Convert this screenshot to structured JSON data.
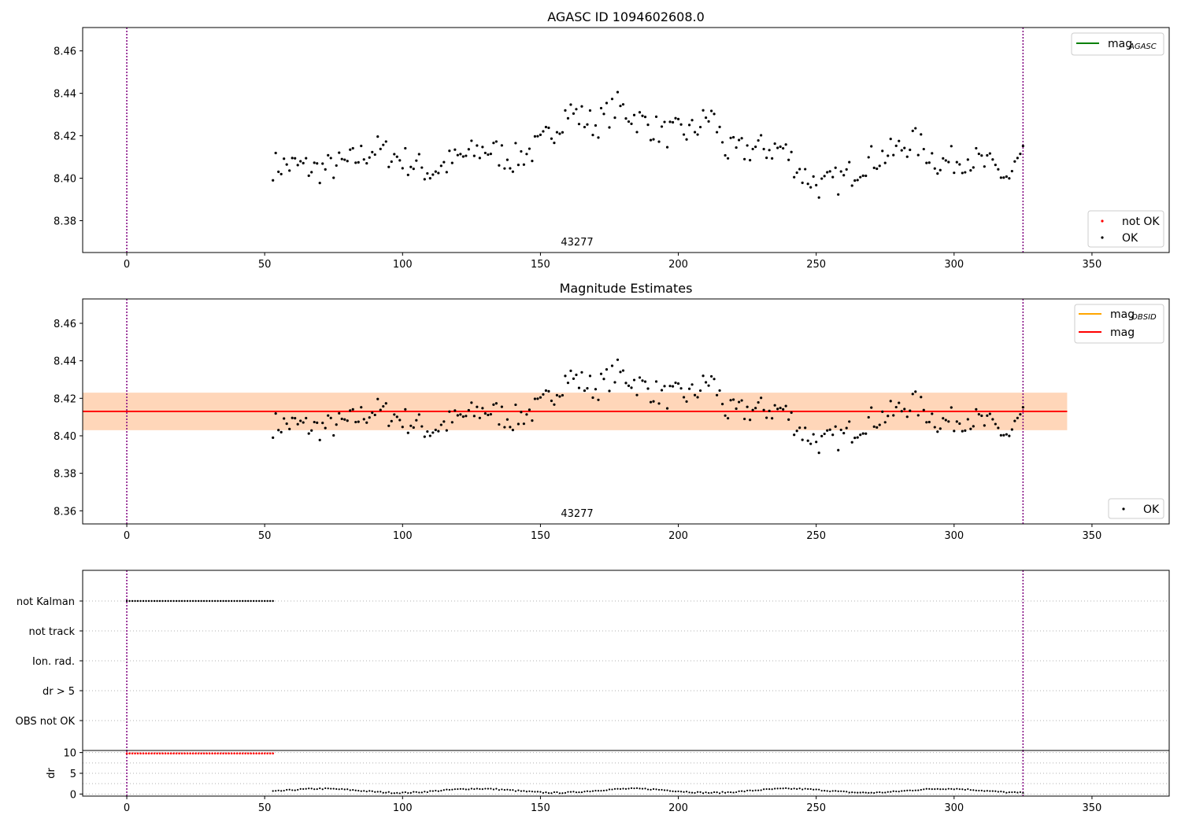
{
  "chart_data": [
    {
      "type": "scatter",
      "title": "AGASC ID 1094602608.0",
      "ylim": [
        8.365,
        8.471
      ],
      "xlim": [
        -16,
        378
      ],
      "xticks": [
        "0",
        "50",
        "100",
        "150",
        "200",
        "250",
        "300",
        "350"
      ],
      "yticks": [
        "8.38",
        "8.40",
        "8.42",
        "8.44",
        "8.46"
      ],
      "obsid_label": "43277",
      "vlines": [
        0,
        325
      ],
      "vline_color": "#800080",
      "legend_lines": [
        {
          "label": "mag",
          "sub": "AGASC",
          "color": "#008000"
        }
      ],
      "legend_markers": [
        {
          "label": "not OK",
          "color": "#ff0000"
        },
        {
          "label": "OK",
          "color": "#000000"
        }
      ],
      "series": [
        {
          "name": "OK",
          "x_range": [
            53,
            325
          ],
          "mean": 8.413,
          "color": "#000000"
        }
      ]
    },
    {
      "type": "scatter",
      "title": "Magnitude Estimates",
      "ylim": [
        8.353,
        8.473
      ],
      "xlim": [
        -16,
        378
      ],
      "xticks": [
        "0",
        "50",
        "100",
        "150",
        "200",
        "250",
        "300",
        "350"
      ],
      "yticks": [
        "8.36",
        "8.38",
        "8.40",
        "8.42",
        "8.44",
        "8.46"
      ],
      "obsid_label": "43277",
      "vlines": [
        0,
        325
      ],
      "vline_color": "#800080",
      "mag": 8.413,
      "mag_band": [
        8.403,
        8.423
      ],
      "band_x_range": [
        -16,
        341
      ],
      "legend_lines": [
        {
          "label": "mag",
          "sub": "OBSID",
          "color": "#ffa500"
        },
        {
          "label": "mag",
          "sub": "",
          "color": "#ff0000"
        }
      ],
      "legend_markers": [
        {
          "label": "OK",
          "color": "#000000"
        }
      ],
      "series": [
        {
          "name": "OK",
          "x_range": [
            53,
            325
          ],
          "color": "#000000"
        }
      ]
    },
    {
      "type": "scatter",
      "xlim": [
        -16,
        378
      ],
      "flag_labels": [
        "not Kalman",
        "not track",
        "Ion. rad.",
        "dr > 5",
        "OBS not OK"
      ],
      "flag_ranges": {
        "not Kalman": [
          0,
          53
        ]
      },
      "vlines": [
        0,
        325
      ]
    },
    {
      "type": "scatter",
      "ylabel": "dr",
      "xlim": [
        -16,
        378
      ],
      "ylim": [
        -0.5,
        10.5
      ],
      "yticks": [
        "0",
        "5",
        "10"
      ],
      "xticks": [
        "0",
        "50",
        "100",
        "150",
        "200",
        "250",
        "300",
        "350"
      ],
      "red_points": {
        "x_range": [
          0,
          53
        ],
        "y": 9.8
      },
      "black_points": {
        "x_range": [
          53,
          325
        ],
        "typical": 0.8
      },
      "vlines": [
        0,
        325
      ]
    }
  ]
}
